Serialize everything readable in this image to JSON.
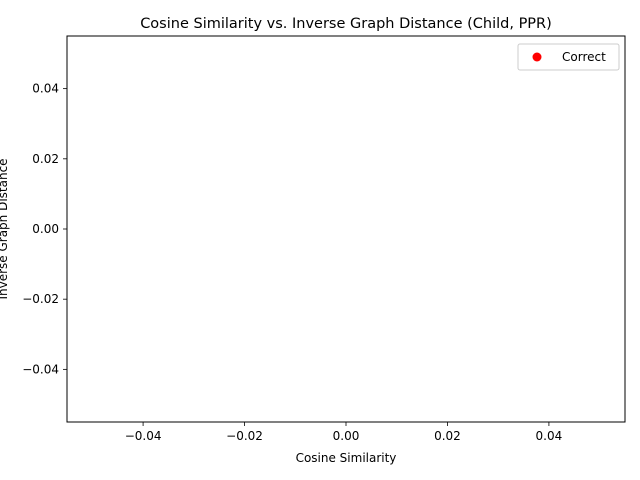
{
  "chart_data": {
    "type": "scatter",
    "title": "Cosine Similarity vs. Inverse Graph Distance (Child, PPR)",
    "xlabel": "Cosine Similarity",
    "ylabel": "Inverse Graph Distance",
    "xlim": [
      -0.055,
      0.055
    ],
    "ylim": [
      -0.055,
      0.055
    ],
    "xticks": [
      -0.04,
      -0.02,
      0.0,
      0.02,
      0.04
    ],
    "xtick_labels": [
      "−0.04",
      "−0.02",
      "0.00",
      "0.02",
      "0.04"
    ],
    "yticks": [
      -0.04,
      -0.02,
      0.0,
      0.02,
      0.04
    ],
    "ytick_labels": [
      "−0.04",
      "−0.02",
      "0.00",
      "0.02",
      "0.04"
    ],
    "grid": false,
    "legend_position": "top-right",
    "series": [
      {
        "name": "Correct",
        "color": "#ff0000",
        "marker": "circle",
        "x": [],
        "y": []
      }
    ]
  }
}
